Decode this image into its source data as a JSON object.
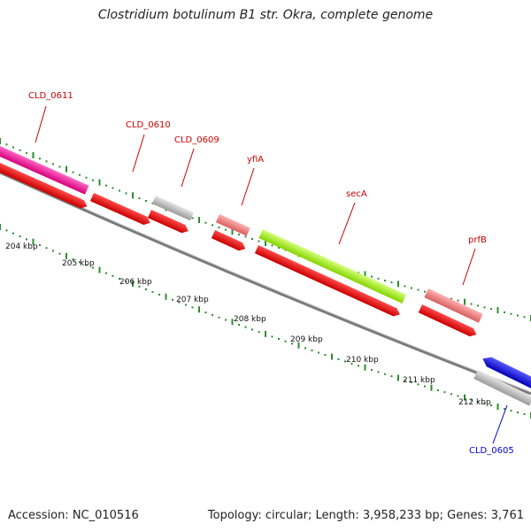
{
  "title": "Clostridium botulinum B1 str. Okra, complete genome",
  "footer": {
    "accession": "Accession: NC_010516",
    "summary": "Topology: circular; Length: 3,958,233 bp; Genes: 3,761"
  },
  "ruler": {
    "labels": [
      "204 kbp",
      "205 kbp",
      "206 kbp",
      "207 kbp",
      "208 kbp",
      "209 kbp",
      "210 kbp",
      "211 kbp",
      "212 kbp"
    ]
  },
  "genes": [
    {
      "name": "CLD_0611",
      "color": "#ff1493",
      "label_color": "#cc0000"
    },
    {
      "name": "CLD_0610",
      "color": "#ff0000",
      "label_color": "#cc0000"
    },
    {
      "name": "CLD_0609",
      "color": "#c0c0c0",
      "label_color": "#cc0000"
    },
    {
      "name": "yfiA",
      "color": "#f08080",
      "label_color": "#cc0000"
    },
    {
      "name": "secA",
      "color": "#adff2f",
      "label_color": "#cc0000"
    },
    {
      "name": "prfB",
      "color": "#f08080",
      "label_color": "#cc0000"
    },
    {
      "name": "CLD_0605",
      "color": "#0000ff",
      "label_color": "#0000cc"
    }
  ]
}
